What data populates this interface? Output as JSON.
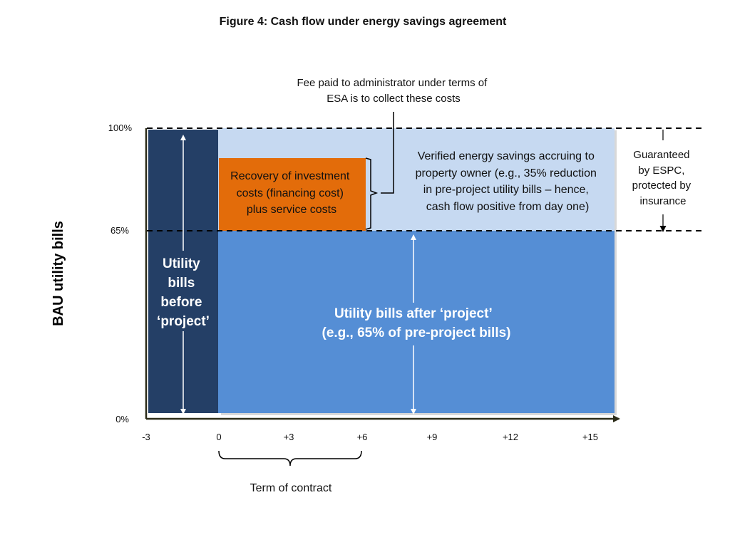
{
  "title": "Figure 4: Cash flow under energy savings agreement",
  "y_axis": {
    "label": "BAU utility bills",
    "ticks": [
      "100%",
      "65%",
      "0%"
    ]
  },
  "x_axis": {
    "ticks": [
      "-3",
      "0",
      "+3",
      "+6",
      "+9",
      "+12",
      "+15"
    ]
  },
  "boxes": {
    "before_project": [
      "Utility",
      "bills",
      "before",
      "‘project’"
    ],
    "recovery": [
      "Recovery of  investment",
      "costs (financing cost)",
      "plus service costs"
    ],
    "savings": [
      "Verified energy savings accruing to",
      "property owner (e.g., 35% reduction",
      "in pre-project utility bills – hence,",
      "cash flow positive from day one)"
    ],
    "after_project": [
      "Utility bills after ‘project’",
      "(e.g., 65% of pre-project bills)"
    ]
  },
  "annotations": {
    "fee": [
      "Fee paid to administrator under terms of",
      "ESA is to collect these costs"
    ],
    "guaranteed": [
      "Guaranteed",
      "by ESPC,",
      "protected by",
      "insurance"
    ],
    "term": "Term of contract"
  },
  "colors": {
    "before_fill": "#243f66",
    "after_fill": "#558ed5",
    "savings_fill": "#c6d9f1",
    "recovery_fill": "#e36c0a",
    "axis": "#2b2b18"
  }
}
